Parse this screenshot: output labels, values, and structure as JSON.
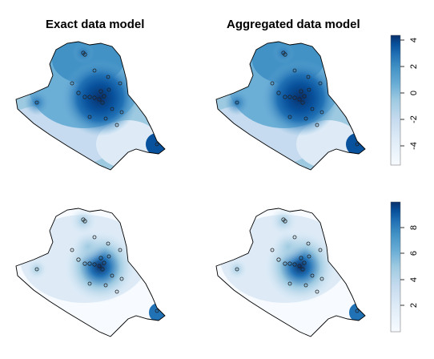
{
  "panels": {
    "top_left_title": "Exact data model",
    "top_right_title": "Aggregated data model"
  },
  "colorbars": {
    "top": {
      "ticks": [
        "4",
        "2",
        "0",
        "-2",
        "-4"
      ],
      "range": [
        -5,
        5
      ]
    },
    "bottom": {
      "ticks": [
        "8",
        "6",
        "4",
        "2"
      ],
      "range": [
        0,
        10
      ]
    }
  },
  "colors": {
    "scale": [
      "#f7fbff",
      "#deebf7",
      "#c6dbef",
      "#9ecae1",
      "#6baed6",
      "#4292c6",
      "#2171b5",
      "#08519c",
      "#08306b"
    ]
  }
}
